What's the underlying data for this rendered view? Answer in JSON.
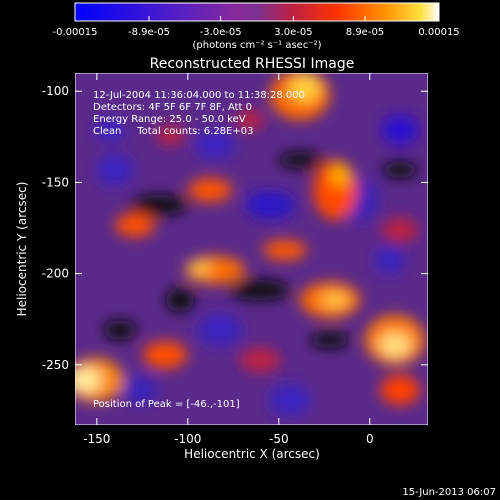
{
  "colorbar": {
    "tick_labels": [
      "-0.00015",
      "-8.9e-05",
      "-3.0e-05",
      "3.0e-05",
      "8.9e-05",
      "0.00015"
    ],
    "ticks": [
      -0.00015,
      -8.9e-05,
      -3e-05,
      3e-05,
      8.9e-05,
      0.00015
    ],
    "range": [
      -0.00015,
      0.00015
    ],
    "unit_label": "(photons cm⁻² s⁻¹ asec⁻²)",
    "colors": [
      "#0000ff",
      "#3a00c8",
      "#7a2ab8",
      "#c02040",
      "#ff3300",
      "#ff8800",
      "#ffd000",
      "#ffffff"
    ]
  },
  "plot": {
    "title": "Reconstructed RHESSI Image",
    "xlabel": "Heliocentric X (arcsec)",
    "ylabel": "Heliocentric Y (arcsec)",
    "xlim": [
      -162,
      32
    ],
    "ylim": [
      -283,
      -90
    ],
    "x_tick_labels": [
      "-150",
      "-100",
      "-50",
      "0"
    ],
    "x_ticks": [
      -150,
      -100,
      -50,
      0
    ],
    "y_tick_labels": [
      "-100",
      "-150",
      "-200",
      "-250"
    ],
    "y_ticks": [
      -100,
      -150,
      -200,
      -250
    ]
  },
  "annotation": {
    "line1": "12-Jul-2004 11:36:04.000 to 11:38:28.000",
    "line2": "Detectors: 4F 5F 6F 7F 8F, Att 0",
    "line3": "Energy Range: 25.0 - 50.0 keV",
    "line4": "Clean     Total counts: 6.28E+03",
    "peak": "Position of Peak = [-46.,-101]"
  },
  "footer": {
    "timestamp": "15-Jun-2013 06:07"
  }
}
